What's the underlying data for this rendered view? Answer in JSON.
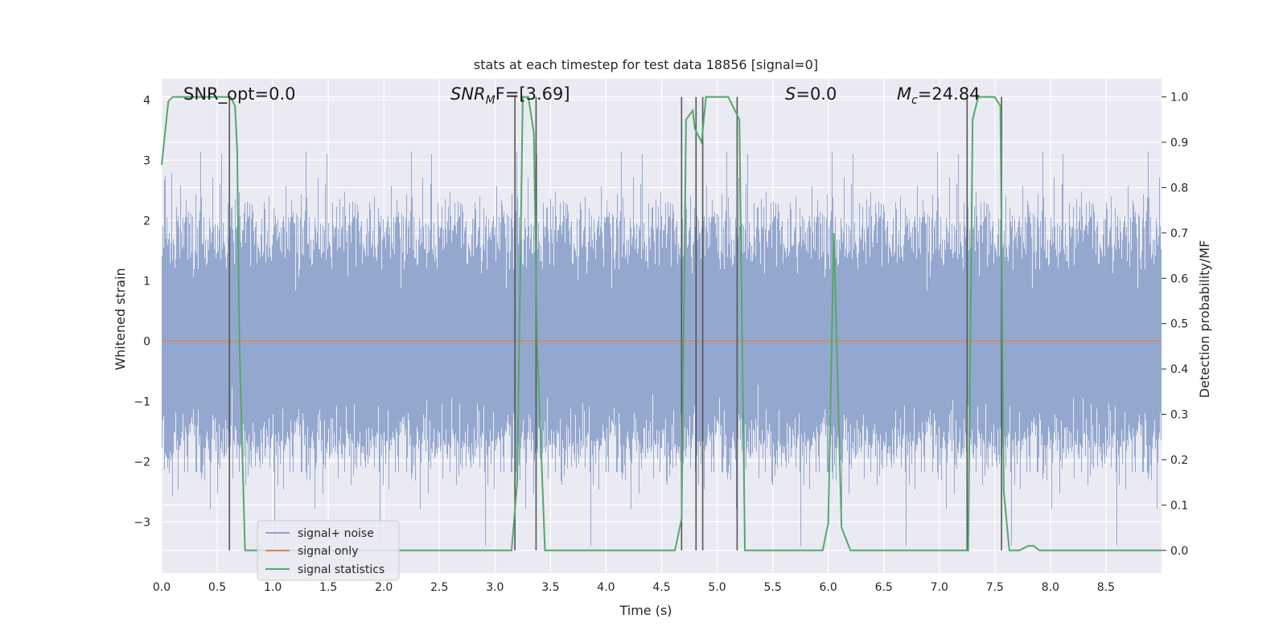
{
  "chart_data": {
    "type": "line",
    "title": "stats at each timestep for test data 18856 [signal=0]",
    "xlabel": "Time (s)",
    "ylabel_left": "Whitened strain",
    "ylabel_right": "Detection probability/MF",
    "xlim": [
      0.0,
      9.0
    ],
    "ylim_left": [
      -3.85,
      4.35
    ],
    "ylim_right": [
      -0.05,
      1.04
    ],
    "xticks": [
      "0.0",
      "0.5",
      "1.0",
      "1.5",
      "2.0",
      "2.5",
      "3.0",
      "3.5",
      "4.0",
      "4.5",
      "5.0",
      "5.5",
      "6.0",
      "6.5",
      "7.0",
      "7.5",
      "8.0",
      "8.5"
    ],
    "yticks_left": [
      "4",
      "3",
      "2",
      "1",
      "0",
      "−1",
      "−2",
      "−3"
    ],
    "yticks_right": [
      "1.0",
      "0.9",
      "0.8",
      "0.7",
      "0.6",
      "0.5",
      "0.4",
      "0.3",
      "0.2",
      "0.1",
      "0.0"
    ],
    "annotations": {
      "snr_opt": "SNR_opt=0.0",
      "snr_mf_base": "SNR",
      "snr_mf_sub": "M",
      "snr_mf_rest": "F=[3.69]",
      "s_base": "S",
      "s_rest": "=0.0",
      "mc_base": "M",
      "mc_sub": "c",
      "mc_rest": "=24.84"
    },
    "legend": {
      "placement": "lower-left",
      "entries": [
        "signal+ noise",
        "signal only",
        "signal statistics"
      ]
    },
    "series": [
      {
        "name": "signal+ noise",
        "color": "#8fa4cc",
        "description_type": "noise",
        "duration": 9.0
      },
      {
        "name": "signal only",
        "color": "#dd8452",
        "values_constant": 0.0
      },
      {
        "name": "signal statistics",
        "color": "#55a868",
        "x": [
          0.0,
          0.06,
          0.1,
          0.15,
          0.2,
          0.3,
          0.4,
          0.5,
          0.6,
          0.62,
          0.66,
          0.68,
          0.7,
          0.75,
          0.8,
          1.0,
          1.5,
          2.0,
          2.5,
          3.0,
          3.1,
          3.15,
          3.2,
          3.25,
          3.3,
          3.35,
          3.38,
          3.45,
          3.5,
          4.0,
          4.5,
          4.62,
          4.68,
          4.72,
          4.78,
          4.8,
          4.86,
          4.9,
          5.0,
          5.1,
          5.2,
          5.25,
          5.28,
          5.5,
          5.95,
          6.0,
          6.05,
          6.12,
          6.2,
          6.5,
          7.0,
          7.2,
          7.26,
          7.3,
          7.35,
          7.4,
          7.5,
          7.55,
          7.58,
          7.63,
          7.72,
          7.8,
          7.85,
          7.9,
          7.95,
          8.0,
          8.5,
          9.0
        ],
        "y": [
          0.85,
          0.99,
          1.0,
          1.0,
          1.0,
          1.0,
          1.0,
          1.0,
          1.0,
          1.0,
          0.98,
          0.88,
          0.45,
          0.0,
          0.0,
          0.0,
          0.0,
          0.0,
          0.0,
          0.0,
          0.0,
          0.0,
          0.15,
          1.0,
          1.0,
          0.92,
          0.45,
          0.0,
          0.0,
          0.0,
          0.0,
          0.0,
          0.07,
          0.95,
          0.97,
          0.93,
          0.9,
          1.0,
          1.0,
          1.0,
          0.95,
          0.0,
          0.0,
          0.0,
          0.0,
          0.06,
          0.7,
          0.05,
          0.0,
          0.0,
          0.0,
          0.0,
          0.0,
          0.95,
          1.0,
          1.0,
          1.0,
          0.98,
          0.13,
          0.0,
          0.0,
          0.01,
          0.01,
          0.0,
          0.0,
          0.0,
          0.0,
          0.0
        ]
      }
    ],
    "vlines_x": [
      0.61,
      3.18,
      3.37,
      4.68,
      4.81,
      4.87,
      5.18,
      7.25,
      7.56
    ],
    "grid": true,
    "colors": {
      "plot_bg": "#eaeaf2",
      "grid": "#ffffff",
      "vline": "#555555"
    }
  }
}
